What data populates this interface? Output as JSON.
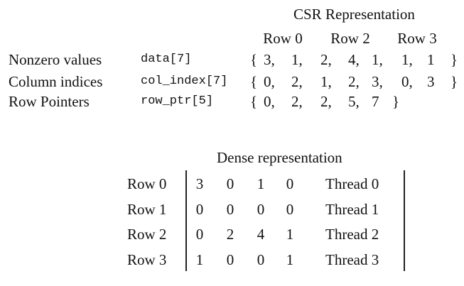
{
  "csr": {
    "title": "CSR Representation",
    "row_headers": [
      "Row 0",
      "Row 2",
      "Row 3"
    ],
    "arrays": [
      {
        "label": "Nonzero values",
        "code": "data[7]",
        "open": "{",
        "values": [
          "3,",
          "1,",
          "2,",
          "4,",
          "1,",
          "1,",
          "1"
        ],
        "close": "}"
      },
      {
        "label": "Column indices",
        "code": "col_index[7]",
        "open": "{",
        "values": [
          "0,",
          "2,",
          "1,",
          "2,",
          "3,",
          "0,",
          "3"
        ],
        "close": "}"
      },
      {
        "label": "Row Pointers",
        "code": "row_ptr[5]",
        "open": "{",
        "values": [
          "0,",
          "2,",
          "2,",
          "5,",
          "7"
        ],
        "close": "}"
      }
    ]
  },
  "dense": {
    "title": "Dense representation",
    "rows": [
      {
        "label": "Row 0",
        "values": [
          "3",
          "0",
          "1",
          "0"
        ],
        "thread": "Thread 0"
      },
      {
        "label": "Row 1",
        "values": [
          "0",
          "0",
          "0",
          "0"
        ],
        "thread": "Thread 1"
      },
      {
        "label": "Row 2",
        "values": [
          "0",
          "2",
          "4",
          "1"
        ],
        "thread": "Thread 2"
      },
      {
        "label": "Row 3",
        "values": [
          "1",
          "0",
          "0",
          "1"
        ],
        "thread": "Thread 3"
      }
    ]
  }
}
